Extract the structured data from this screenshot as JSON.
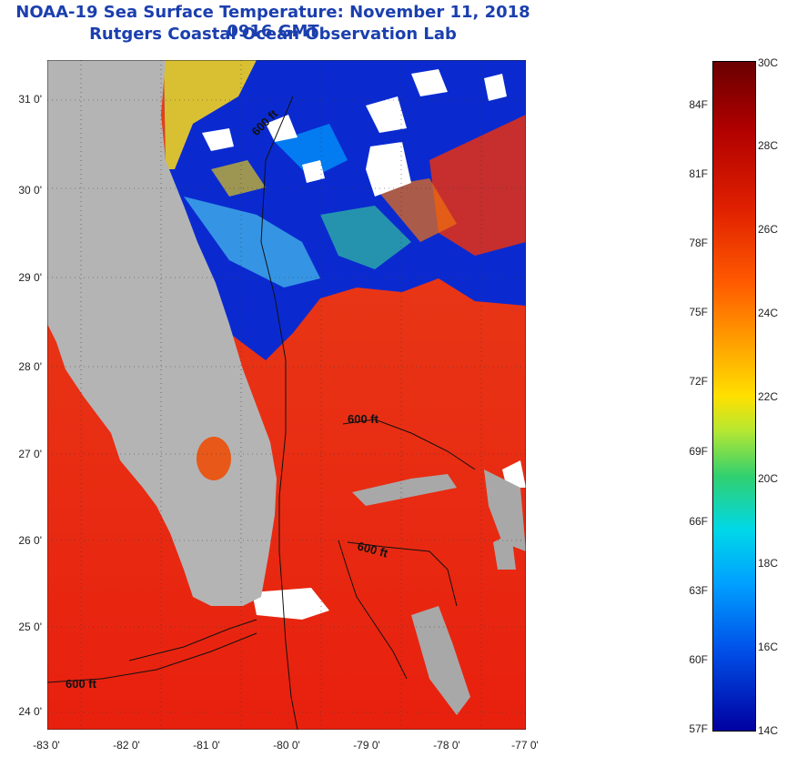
{
  "title": "NOAA-19 Sea Surface Temperature:  November 11, 2018 0916 GMT",
  "subtitle": "Rutgers Coastal Ocean Observation Lab",
  "lat_labels": [
    "31 0'",
    "30 0'",
    "29 0'",
    "28 0'",
    "27 0'",
    "26 0'",
    "25 0'",
    "24 0'"
  ],
  "lon_labels": [
    "-83 0'",
    "-82 0'",
    "-81 0'",
    "-80 0'",
    "-79 0'",
    "-78 0'",
    "-77 0'"
  ],
  "contour_labels": [
    "600 ft",
    "600 ft",
    "600 ft",
    "600 ft"
  ],
  "colorbar": {
    "fahrenheit": [
      "84F",
      "81F",
      "78F",
      "75F",
      "72F",
      "69F",
      "66F",
      "63F",
      "60F",
      "57F"
    ],
    "celsius": [
      "30C",
      "28C",
      "26C",
      "24C",
      "22C",
      "20C",
      "18C",
      "16C",
      "14C"
    ]
  },
  "colors": {
    "land": "#b4b4b4",
    "cloud": "#ffffff",
    "warm_water": "#ee2a10",
    "cold_water": "#0a2ad0",
    "title": "#1b3fae"
  }
}
